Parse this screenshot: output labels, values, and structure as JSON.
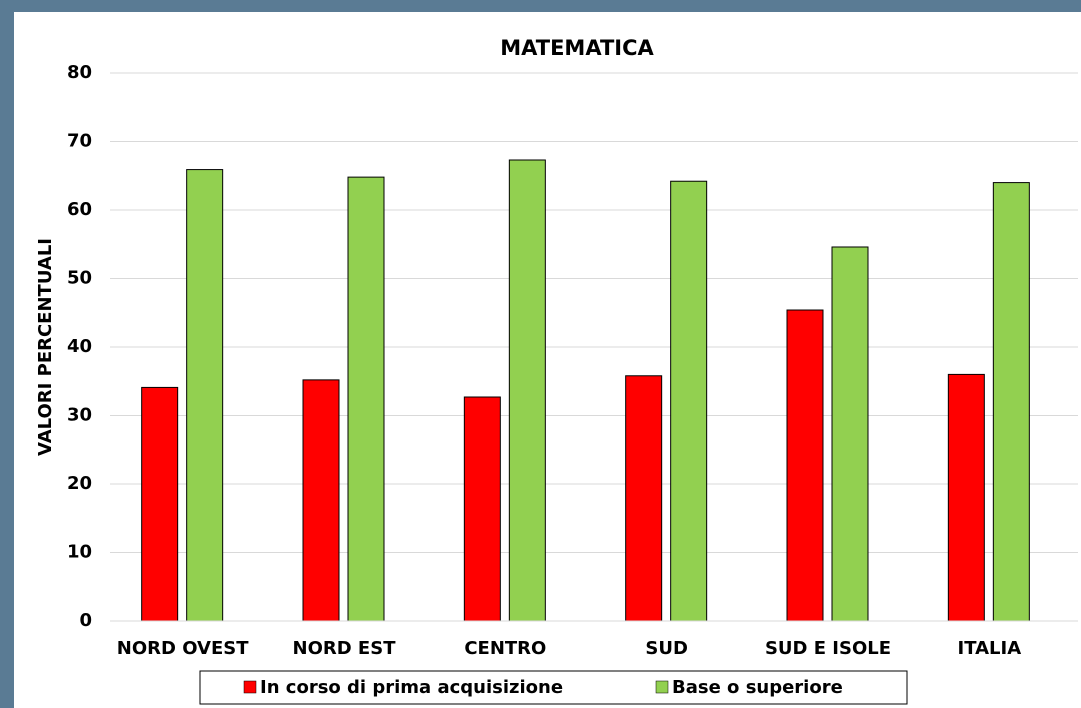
{
  "chart_data": {
    "type": "bar",
    "title": "MATEMATICA",
    "y_label": "VALORI PERCENTUALI",
    "categories": [
      "NORD OVEST",
      "NORD EST",
      "CENTRO",
      "SUD",
      "SUD E ISOLE",
      "ITALIA"
    ],
    "series": [
      {
        "name": "In corso di prima acquisizione",
        "color": "#ff0000",
        "values": [
          34.1,
          35.2,
          32.7,
          35.8,
          45.4,
          36.0
        ]
      },
      {
        "name": "Base o superiore",
        "color": "#92d050",
        "values": [
          65.9,
          64.8,
          67.3,
          64.2,
          54.6,
          64.0
        ]
      }
    ],
    "ylim": [
      0,
      80
    ],
    "yticks": [
      0,
      10,
      20,
      30,
      40,
      50,
      60,
      70,
      80
    ],
    "grid": true,
    "legend": "bottom"
  }
}
